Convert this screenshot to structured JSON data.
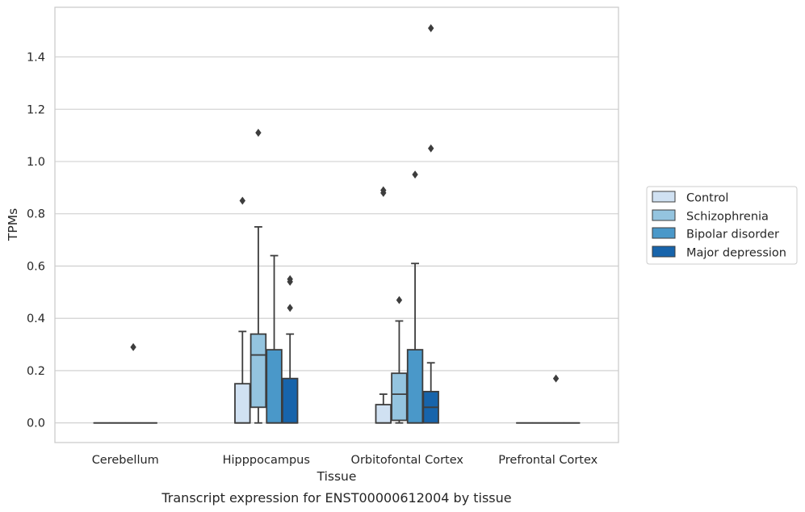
{
  "chart_data": {
    "type": "box",
    "title": "",
    "caption": "Transcript expression for ENST00000612004 by tissue",
    "xlabel": "Tissue",
    "ylabel": "TPMs",
    "ylim": [
      -0.075,
      1.59
    ],
    "yticks": [
      0.0,
      0.2,
      0.4,
      0.6,
      0.8,
      1.0,
      1.2,
      1.4
    ],
    "ytick_labels": [
      "0.0",
      "0.2",
      "0.4",
      "0.6",
      "0.8",
      "1.0",
      "1.2",
      "1.4"
    ],
    "grid": "horizontal",
    "legend_position": "right",
    "categories": [
      "Cerebellum",
      "Hipppocampus",
      "Orbitofontal Cortex",
      "Prefrontal Cortex"
    ],
    "series": [
      {
        "name": "Control",
        "color": "#d0e1f2",
        "boxes": [
          {
            "q1": 0.0,
            "median": 0.0,
            "q3": 0.0,
            "whisker_low": 0.0,
            "whisker_high": 0.0,
            "outliers": []
          },
          {
            "q1": 0.0,
            "median": 0.0,
            "q3": 0.15,
            "whisker_low": 0.0,
            "whisker_high": 0.35,
            "outliers": [
              0.85
            ]
          },
          {
            "q1": 0.0,
            "median": 0.0,
            "q3": 0.07,
            "whisker_low": 0.0,
            "whisker_high": 0.11,
            "outliers": [
              0.88,
              0.89
            ]
          },
          {
            "q1": 0.0,
            "median": 0.0,
            "q3": 0.0,
            "whisker_low": 0.0,
            "whisker_high": 0.0,
            "outliers": []
          }
        ]
      },
      {
        "name": "Schizophrenia",
        "color": "#94c4df",
        "boxes": [
          {
            "q1": 0.0,
            "median": 0.0,
            "q3": 0.0,
            "whisker_low": 0.0,
            "whisker_high": 0.0,
            "outliers": []
          },
          {
            "q1": 0.06,
            "median": 0.26,
            "q3": 0.34,
            "whisker_low": 0.0,
            "whisker_high": 0.75,
            "outliers": [
              1.11
            ]
          },
          {
            "q1": 0.01,
            "median": 0.11,
            "q3": 0.19,
            "whisker_low": 0.0,
            "whisker_high": 0.39,
            "outliers": [
              0.47
            ]
          },
          {
            "q1": 0.0,
            "median": 0.0,
            "q3": 0.0,
            "whisker_low": 0.0,
            "whisker_high": 0.0,
            "outliers": []
          }
        ]
      },
      {
        "name": "Bipolar disorder",
        "color": "#4a98c9",
        "boxes": [
          {
            "q1": 0.0,
            "median": 0.0,
            "q3": 0.0,
            "whisker_low": 0.0,
            "whisker_high": 0.0,
            "outliers": [
              0.29
            ]
          },
          {
            "q1": 0.0,
            "median": 0.0,
            "q3": 0.28,
            "whisker_low": 0.0,
            "whisker_high": 0.64,
            "outliers": []
          },
          {
            "q1": 0.0,
            "median": 0.0,
            "q3": 0.28,
            "whisker_low": 0.0,
            "whisker_high": 0.61,
            "outliers": [
              0.95
            ]
          },
          {
            "q1": 0.0,
            "median": 0.0,
            "q3": 0.0,
            "whisker_low": 0.0,
            "whisker_high": 0.0,
            "outliers": [
              0.17
            ]
          }
        ]
      },
      {
        "name": "Major depression",
        "color": "#1764ab",
        "boxes": [
          {
            "q1": 0.0,
            "median": 0.0,
            "q3": 0.0,
            "whisker_low": 0.0,
            "whisker_high": 0.0,
            "outliers": []
          },
          {
            "q1": 0.0,
            "median": 0.0,
            "q3": 0.17,
            "whisker_low": 0.0,
            "whisker_high": 0.34,
            "outliers": [
              0.44,
              0.54,
              0.55
            ]
          },
          {
            "q1": 0.0,
            "median": 0.06,
            "q3": 0.12,
            "whisker_low": 0.0,
            "whisker_high": 0.23,
            "outliers": [
              1.05,
              1.51
            ]
          },
          {
            "q1": 0.0,
            "median": 0.0,
            "q3": 0.0,
            "whisker_low": 0.0,
            "whisker_high": 0.0,
            "outliers": []
          }
        ]
      }
    ],
    "colors": {
      "grid": "#cccccc",
      "frame": "#cccccc",
      "edge": "#3d3d3d",
      "legend_frame": "#cccccc"
    }
  }
}
